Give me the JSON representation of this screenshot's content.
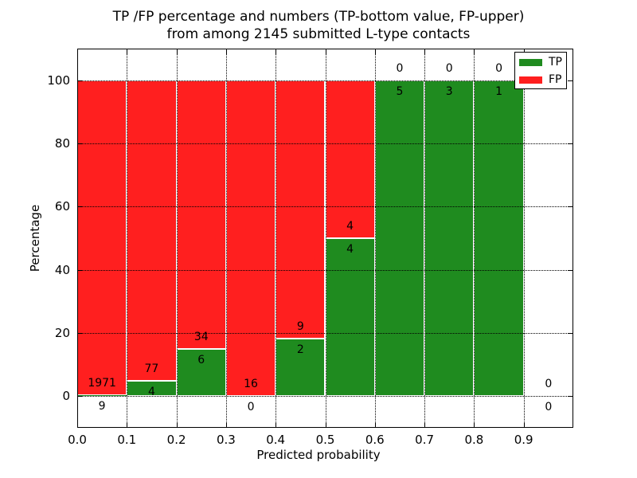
{
  "chart_data": {
    "type": "bar",
    "title_line1": "TP /FP percentage and numbers (TP-bottom value, FP-upper)",
    "title_line2": "from among 2145 submitted L-type contacts",
    "xlabel": "Predicted probability",
    "ylabel": "Percentage",
    "xlim": [
      0.0,
      1.0
    ],
    "ylim": [
      -10,
      110
    ],
    "xticks": [
      {
        "value": 0.0,
        "label": "0.0"
      },
      {
        "value": 0.1,
        "label": "0.1"
      },
      {
        "value": 0.2,
        "label": "0.2"
      },
      {
        "value": 0.3,
        "label": "0.3"
      },
      {
        "value": 0.4,
        "label": "0.4"
      },
      {
        "value": 0.5,
        "label": "0.5"
      },
      {
        "value": 0.6,
        "label": "0.6"
      },
      {
        "value": 0.7,
        "label": "0.7"
      },
      {
        "value": 0.8,
        "label": "0.8"
      },
      {
        "value": 0.9,
        "label": "0.9"
      }
    ],
    "yticks": [
      {
        "value": 0,
        "label": "0"
      },
      {
        "value": 20,
        "label": "20"
      },
      {
        "value": 40,
        "label": "40"
      },
      {
        "value": 60,
        "label": "60"
      },
      {
        "value": 80,
        "label": "80"
      },
      {
        "value": 100,
        "label": "100"
      }
    ],
    "grid": true,
    "legend_position": "upper right",
    "legend": [
      {
        "label": "TP",
        "color": "#1f8b1f"
      },
      {
        "label": "FP",
        "color": "#ff1f1f"
      }
    ],
    "colors": {
      "tp": "#1f8b1f",
      "fp": "#ff1f1f",
      "bar_edge": "#ffffff",
      "text": "#000000"
    },
    "total_contacts": 2145,
    "bins": [
      {
        "x0": 0.0,
        "x1": 0.1,
        "tp": 9,
        "fp": 1971
      },
      {
        "x0": 0.1,
        "x1": 0.2,
        "tp": 4,
        "fp": 77
      },
      {
        "x0": 0.2,
        "x1": 0.3,
        "tp": 6,
        "fp": 34
      },
      {
        "x0": 0.3,
        "x1": 0.4,
        "tp": 0,
        "fp": 16
      },
      {
        "x0": 0.4,
        "x1": 0.5,
        "tp": 2,
        "fp": 9
      },
      {
        "x0": 0.5,
        "x1": 0.6,
        "tp": 4,
        "fp": 4
      },
      {
        "x0": 0.6,
        "x1": 0.7,
        "tp": 5,
        "fp": 0
      },
      {
        "x0": 0.7,
        "x1": 0.8,
        "tp": 3,
        "fp": 0
      },
      {
        "x0": 0.8,
        "x1": 0.9,
        "tp": 1,
        "fp": 0
      },
      {
        "x0": 0.9,
        "x1": 1.0,
        "tp": 0,
        "fp": 0
      }
    ]
  }
}
